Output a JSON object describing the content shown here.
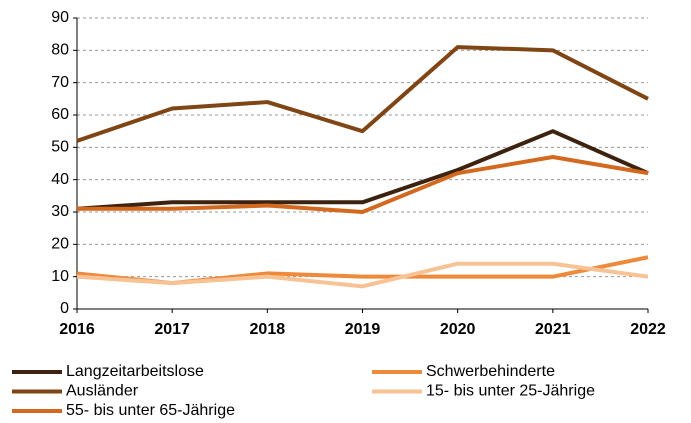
{
  "chart_data": {
    "type": "line",
    "x": [
      2016,
      2017,
      2018,
      2019,
      2020,
      2021,
      2022
    ],
    "xlim": [
      2016,
      2022
    ],
    "xticks": [
      2016,
      2017,
      2018,
      2019,
      2020,
      2021,
      2022
    ],
    "ylim": [
      0,
      90
    ],
    "yticks": [
      0,
      10,
      20,
      30,
      40,
      50,
      60,
      70,
      80,
      90
    ],
    "grid": true,
    "legend": "bottom",
    "series": [
      {
        "name": "Langzeitarbeitslose",
        "color": "#3d2210",
        "values": [
          31,
          33,
          33,
          33,
          43,
          55,
          42
        ]
      },
      {
        "name": "Schwerbehinderte",
        "color": "#ee8a3c",
        "values": [
          11,
          8,
          11,
          10,
          10,
          10,
          16
        ]
      },
      {
        "name": "Ausländer",
        "color": "#7f4514",
        "values": [
          52,
          62,
          64,
          55,
          81,
          80,
          65
        ]
      },
      {
        "name": "15- bis unter 25-Jährige",
        "color": "#f8c394",
        "values": [
          10,
          8,
          10,
          7,
          14,
          14,
          10
        ]
      },
      {
        "name": "55- bis unter 65-Jährige",
        "color": "#d2691e",
        "values": [
          31,
          31,
          32,
          30,
          42,
          47,
          42
        ]
      }
    ]
  }
}
